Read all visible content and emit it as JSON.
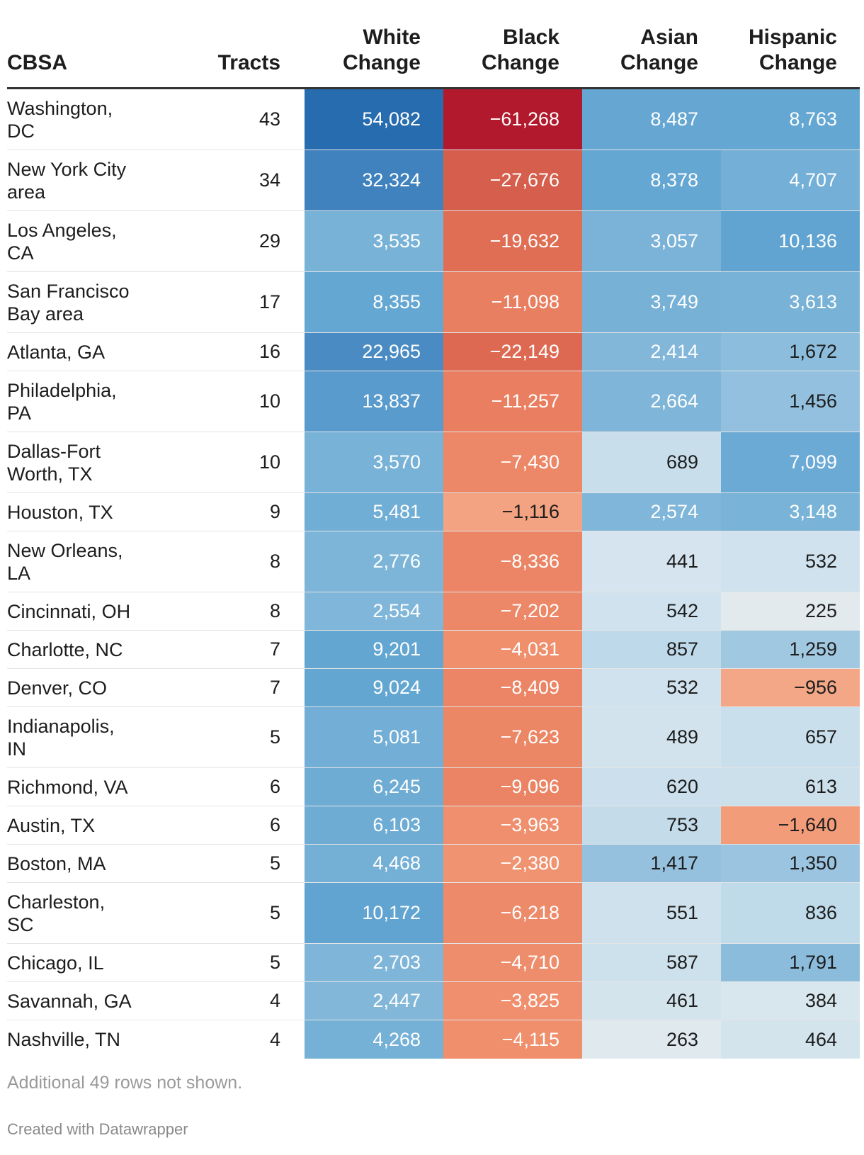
{
  "table": {
    "headers": {
      "cbsa": "CBSA",
      "tracts": "Tracts",
      "white_l1": "White",
      "white_l2": "Change",
      "black_l1": "Black",
      "black_l2": "Change",
      "asian_l1": "Asian",
      "asian_l2": "Change",
      "hispanic_l1": "Hispanic",
      "hispanic_l2": "Change"
    },
    "rows": [
      {
        "name": "Washington, DC",
        "tracts": "43",
        "white": "54,082",
        "black": "−61,268",
        "asian": "8,487",
        "hispanic": "8,763"
      },
      {
        "name": "New York City area",
        "tracts": "34",
        "white": "32,324",
        "black": "−27,676",
        "asian": "8,378",
        "hispanic": "4,707"
      },
      {
        "name": "Los Angeles, CA",
        "tracts": "29",
        "white": "3,535",
        "black": "−19,632",
        "asian": "3,057",
        "hispanic": "10,136"
      },
      {
        "name": "San Francisco Bay area",
        "tracts": "17",
        "white": "8,355",
        "black": "−11,098",
        "asian": "3,749",
        "hispanic": "3,613"
      },
      {
        "name": "Atlanta, GA",
        "tracts": "16",
        "white": "22,965",
        "black": "−22,149",
        "asian": "2,414",
        "hispanic": "1,672"
      },
      {
        "name": "Philadelphia, PA",
        "tracts": "10",
        "white": "13,837",
        "black": "−11,257",
        "asian": "2,664",
        "hispanic": "1,456"
      },
      {
        "name": "Dallas-Fort Worth, TX",
        "tracts": "10",
        "white": "3,570",
        "black": "−7,430",
        "asian": "689",
        "hispanic": "7,099"
      },
      {
        "name": "Houston, TX",
        "tracts": "9",
        "white": "5,481",
        "black": "−1,116",
        "asian": "2,574",
        "hispanic": "3,148"
      },
      {
        "name": "New Orleans, LA",
        "tracts": "8",
        "white": "2,776",
        "black": "−8,336",
        "asian": "441",
        "hispanic": "532"
      },
      {
        "name": "Cincinnati, OH",
        "tracts": "8",
        "white": "2,554",
        "black": "−7,202",
        "asian": "542",
        "hispanic": "225"
      },
      {
        "name": "Charlotte, NC",
        "tracts": "7",
        "white": "9,201",
        "black": "−4,031",
        "asian": "857",
        "hispanic": "1,259"
      },
      {
        "name": "Denver, CO",
        "tracts": "7",
        "white": "9,024",
        "black": "−8,409",
        "asian": "532",
        "hispanic": "−956"
      },
      {
        "name": "Indianapolis, IN",
        "tracts": "5",
        "white": "5,081",
        "black": "−7,623",
        "asian": "489",
        "hispanic": "657"
      },
      {
        "name": "Richmond, VA",
        "tracts": "6",
        "white": "6,245",
        "black": "−9,096",
        "asian": "620",
        "hispanic": "613"
      },
      {
        "name": "Austin, TX",
        "tracts": "6",
        "white": "6,103",
        "black": "−3,963",
        "asian": "753",
        "hispanic": "−1,640"
      },
      {
        "name": "Boston, MA",
        "tracts": "5",
        "white": "4,468",
        "black": "−2,380",
        "asian": "1,417",
        "hispanic": "1,350"
      },
      {
        "name": "Charleston, SC",
        "tracts": "5",
        "white": "10,172",
        "black": "−6,218",
        "asian": "551",
        "hispanic": "836"
      },
      {
        "name": "Chicago, IL",
        "tracts": "5",
        "white": "2,703",
        "black": "−4,710",
        "asian": "587",
        "hispanic": "1,791"
      },
      {
        "name": "Savannah, GA",
        "tracts": "4",
        "white": "2,447",
        "black": "−3,825",
        "asian": "461",
        "hispanic": "384"
      },
      {
        "name": "Nashville, TN",
        "tracts": "4",
        "white": "4,268",
        "black": "−4,115",
        "asian": "263",
        "hispanic": "464"
      }
    ]
  },
  "chart_data": {
    "type": "table",
    "columns": [
      "CBSA",
      "Tracts",
      "White Change",
      "Black Change",
      "Asian Change",
      "Hispanic Change"
    ],
    "rows": [
      [
        "Washington, DC",
        43,
        54082,
        -61268,
        8487,
        8763
      ],
      [
        "New York City area",
        34,
        32324,
        -27676,
        8378,
        4707
      ],
      [
        "Los Angeles, CA",
        29,
        3535,
        -19632,
        3057,
        10136
      ],
      [
        "San Francisco Bay area",
        17,
        8355,
        -11098,
        3749,
        3613
      ],
      [
        "Atlanta, GA",
        16,
        22965,
        -22149,
        2414,
        1672
      ],
      [
        "Philadelphia, PA",
        10,
        13837,
        -11257,
        2664,
        1456
      ],
      [
        "Dallas-Fort Worth, TX",
        10,
        3570,
        -7430,
        689,
        7099
      ],
      [
        "Houston, TX",
        9,
        5481,
        -1116,
        2574,
        3148
      ],
      [
        "New Orleans, LA",
        8,
        2776,
        -8336,
        441,
        532
      ],
      [
        "Cincinnati, OH",
        8,
        2554,
        -7202,
        542,
        225
      ],
      [
        "Charlotte, NC",
        7,
        9201,
        -4031,
        857,
        1259
      ],
      [
        "Denver, CO",
        7,
        9024,
        -8409,
        532,
        -956
      ],
      [
        "Indianapolis, IN",
        5,
        5081,
        -7623,
        489,
        657
      ],
      [
        "Richmond, VA",
        6,
        6245,
        -9096,
        620,
        613
      ],
      [
        "Austin, TX",
        6,
        6103,
        -3963,
        753,
        -1640
      ],
      [
        "Boston, MA",
        5,
        4468,
        -2380,
        1417,
        1350
      ],
      [
        "Charleston, SC",
        5,
        10172,
        -6218,
        551,
        836
      ],
      [
        "Chicago, IL",
        5,
        2703,
        -4710,
        587,
        1791
      ],
      [
        "Savannah, GA",
        4,
        2447,
        -3825,
        461,
        384
      ],
      [
        "Nashville, TN",
        4,
        4268,
        -4115,
        263,
        464
      ]
    ],
    "color_scale": {
      "positive": "#2166ac",
      "neutral": "#f3f1ea",
      "negative": "#b2182b"
    }
  },
  "footer": {
    "note": "Additional 49 rows not shown.",
    "credit": "Created with Datawrapper"
  }
}
